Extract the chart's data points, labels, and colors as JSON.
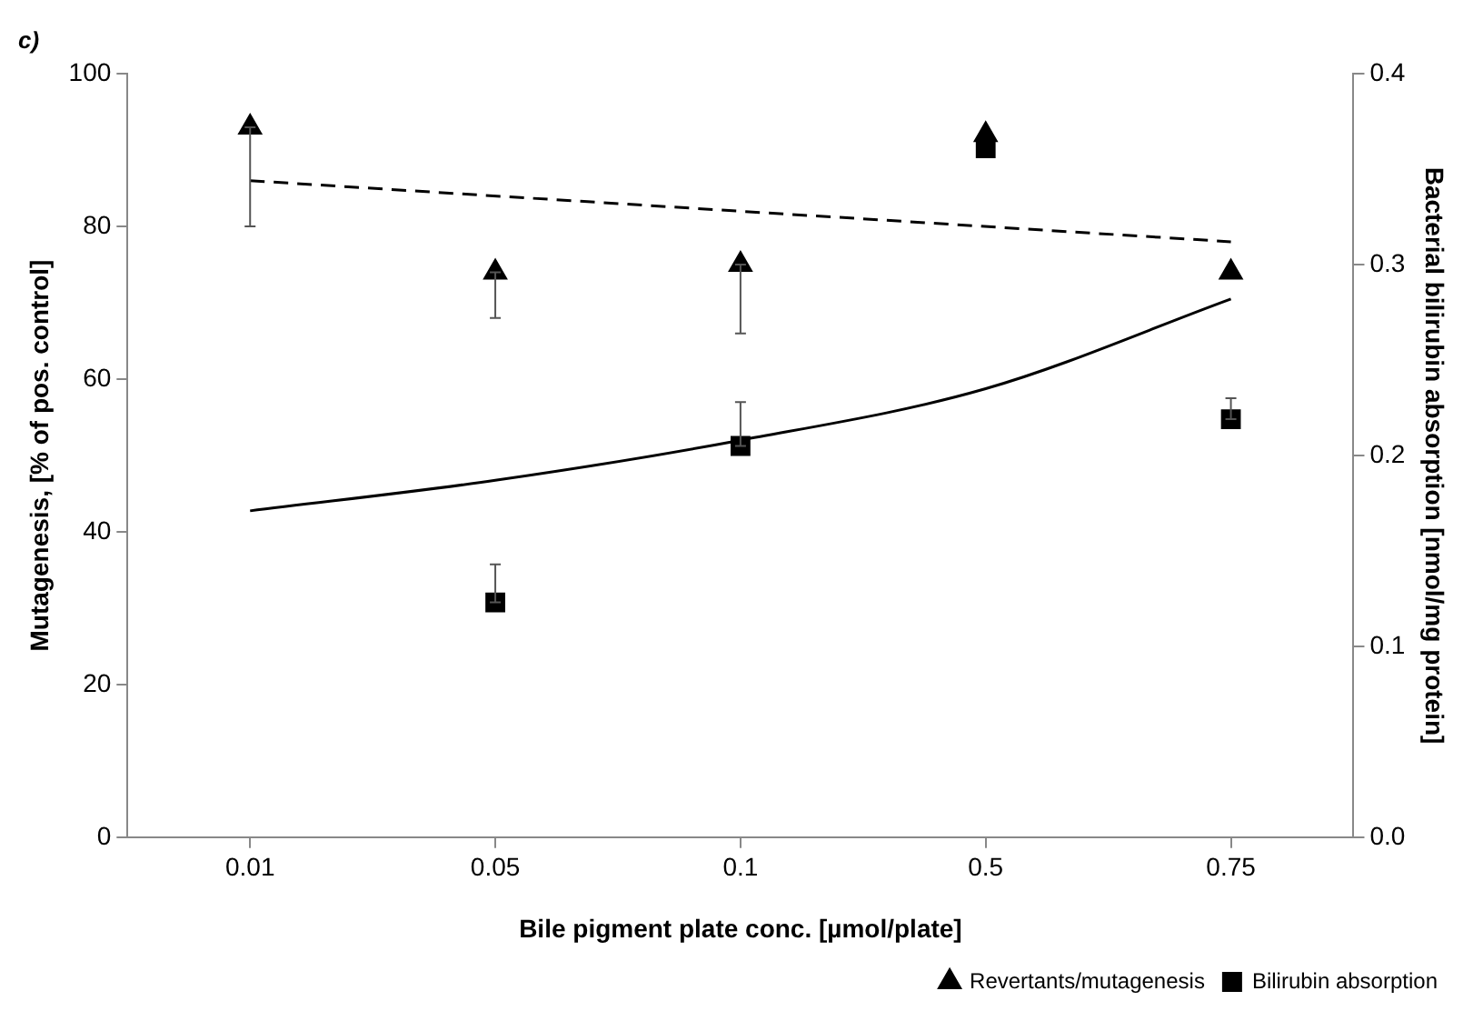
{
  "chart_data": {
    "type": "scatter",
    "title": "c)",
    "xlabel": "Bile pigment plate conc. [µmol/plate]",
    "ylabel": "Mutagenesis, [% of pos. control]",
    "y2label": "Bacterial bilirubin absorption [nmol/mg protein]",
    "categories": [
      "0.01",
      "0.05",
      "0.1",
      "0.5",
      "0.75"
    ],
    "series": [
      {
        "name": "Revertants/mutagenesis",
        "color": "#000000",
        "marker": "triangle",
        "values": [
          93,
          74,
          75,
          92,
          74
        ],
        "errors": [
          [
            80,
            93
          ],
          [
            68,
            74
          ],
          [
            66,
            75
          ],
          null,
          null
        ]
      },
      {
        "name": "Bilirubin absorption",
        "color": "#000000",
        "marker": "square",
        "axis": "y2",
        "values": [
          null,
          0.123,
          0.205,
          0.361,
          0.219
        ],
        "errors": [
          null,
          [
            0.123,
            0.143
          ],
          [
            0.205,
            0.228
          ],
          null,
          [
            0.219,
            0.23
          ]
        ]
      },
      {
        "type": "line",
        "color": "#000000",
        "line_style": "dashed",
        "marker": "none",
        "x": [
          "0.01",
          "0.75"
        ],
        "values": [
          86,
          78
        ]
      },
      {
        "type": "line",
        "color": "#000000",
        "line_style": "solid",
        "marker": "none",
        "axis": "y2",
        "values": [
          0.171,
          0.187,
          0.208,
          0.235,
          0.282
        ]
      }
    ],
    "ylim": [
      0,
      100
    ],
    "yticks": [
      0,
      20,
      40,
      60,
      80,
      100
    ],
    "y2lim": [
      0,
      0.4
    ],
    "y2ticks": [
      {
        "value": 0,
        "label": "0.0"
      },
      0.1,
      0.2,
      0.3,
      0.4
    ],
    "grid": false,
    "legend": "bottom right"
  }
}
